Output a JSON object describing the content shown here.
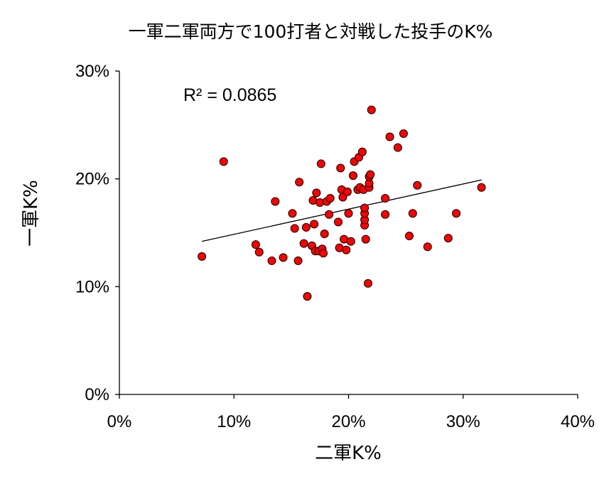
{
  "chart_data": {
    "type": "scatter",
    "title": "一軍二軍両方で100打者と対戦した投手のK%",
    "xlabel": "二軍K%",
    "ylabel": "一軍K%",
    "xlim": [
      0,
      0.4
    ],
    "ylim": [
      0,
      0.3
    ],
    "xticks": [
      0,
      0.1,
      0.2,
      0.3,
      0.4
    ],
    "yticks": [
      0,
      0.1,
      0.2,
      0.3
    ],
    "xtick_labels": [
      "0%",
      "10%",
      "20%",
      "30%",
      "40%"
    ],
    "ytick_labels": [
      "0%",
      "10%",
      "20%",
      "30%"
    ],
    "grid": false,
    "legend": "none",
    "annotation": "R² = 0.0865",
    "trendline": {
      "x": [
        0.072,
        0.316
      ],
      "y": [
        0.142,
        0.199
      ]
    },
    "series": [
      {
        "color": "#ff0000",
        "points": [
          [
            0.072,
            0.128
          ],
          [
            0.091,
            0.216
          ],
          [
            0.119,
            0.139
          ],
          [
            0.122,
            0.132
          ],
          [
            0.133,
            0.124
          ],
          [
            0.136,
            0.179
          ],
          [
            0.143,
            0.127
          ],
          [
            0.151,
            0.168
          ],
          [
            0.153,
            0.154
          ],
          [
            0.156,
            0.124
          ],
          [
            0.157,
            0.197
          ],
          [
            0.161,
            0.14
          ],
          [
            0.163,
            0.155
          ],
          [
            0.164,
            0.091
          ],
          [
            0.168,
            0.138
          ],
          [
            0.169,
            0.18
          ],
          [
            0.17,
            0.158
          ],
          [
            0.171,
            0.133
          ],
          [
            0.172,
            0.187
          ],
          [
            0.174,
            0.133
          ],
          [
            0.175,
            0.178
          ],
          [
            0.176,
            0.214
          ],
          [
            0.177,
            0.135
          ],
          [
            0.178,
            0.131
          ],
          [
            0.179,
            0.149
          ],
          [
            0.181,
            0.179
          ],
          [
            0.183,
            0.167
          ],
          [
            0.184,
            0.182
          ],
          [
            0.191,
            0.16
          ],
          [
            0.192,
            0.136
          ],
          [
            0.193,
            0.21
          ],
          [
            0.194,
            0.19
          ],
          [
            0.195,
            0.183
          ],
          [
            0.196,
            0.144
          ],
          [
            0.198,
            0.134
          ],
          [
            0.199,
            0.188
          ],
          [
            0.2,
            0.168
          ],
          [
            0.202,
            0.142
          ],
          [
            0.204,
            0.203
          ],
          [
            0.205,
            0.216
          ],
          [
            0.208,
            0.19
          ],
          [
            0.209,
            0.22
          ],
          [
            0.21,
            0.192
          ],
          [
            0.212,
            0.225
          ],
          [
            0.213,
            0.19
          ],
          [
            0.214,
            0.157
          ],
          [
            0.214,
            0.162
          ],
          [
            0.214,
            0.168
          ],
          [
            0.214,
            0.173
          ],
          [
            0.215,
            0.144
          ],
          [
            0.217,
            0.103
          ],
          [
            0.218,
            0.192
          ],
          [
            0.218,
            0.196
          ],
          [
            0.218,
            0.202
          ],
          [
            0.219,
            0.204
          ],
          [
            0.22,
            0.264
          ],
          [
            0.232,
            0.182
          ],
          [
            0.232,
            0.167
          ],
          [
            0.236,
            0.239
          ],
          [
            0.243,
            0.229
          ],
          [
            0.248,
            0.242
          ],
          [
            0.253,
            0.147
          ],
          [
            0.256,
            0.168
          ],
          [
            0.26,
            0.194
          ],
          [
            0.269,
            0.137
          ],
          [
            0.287,
            0.145
          ],
          [
            0.294,
            0.168
          ],
          [
            0.316,
            0.192
          ]
        ]
      }
    ]
  }
}
